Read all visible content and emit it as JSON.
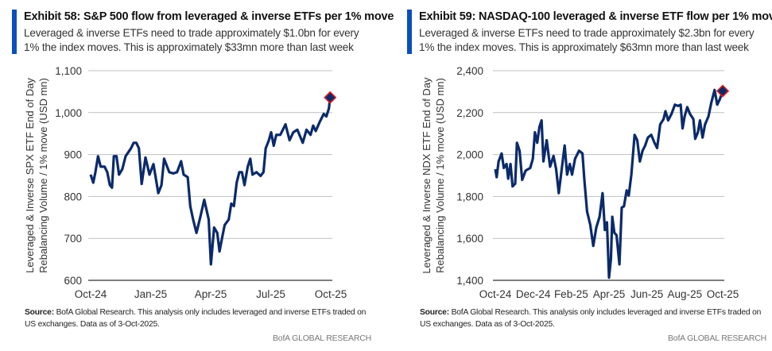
{
  "colors": {
    "accent_bar": "#0a4fbf",
    "line": "#0b2a6b",
    "marker_fill": "#0b2a6b",
    "marker_stroke": "#e02020",
    "grid": "#bfbfbf"
  },
  "panels": [
    {
      "title": "Exhibit 58: S&P 500 flow from leveraged & inverse ETFs per 1% move",
      "subtitle": "Leveraged & inverse ETFs need to trade approximately $1.0bn for every 1% the index moves. This is approximately $33mn more than last week",
      "source_label": "Source:",
      "source_text": " BofA Global Research.  This analysis only includes leveraged and inverse ETFs traded on US exchanges.  Data as of 3-Oct-2025.",
      "brand": "BofA GLOBAL RESEARCH"
    },
    {
      "title": "Exhibit 59: NASDAQ-100 leveraged & inverse ETF flow per 1% move",
      "subtitle": "Leveraged & inverse ETFs need to trade approximately $2.3bn for every 1% the index moves. This is approximately $63mn more than last week",
      "source_label": "Source:",
      "source_text": " BofA Global Research.  This analysis only includes leveraged and inverse ETFs traded on US exchanges.  Data as of 3-Oct-2025.",
      "brand": "BofA GLOBAL RESEARCH"
    }
  ],
  "chart_data": [
    {
      "type": "line",
      "title": "Exhibit 58: S&P 500 flow from leveraged & inverse ETFs per 1% move",
      "xlabel": "",
      "ylabel_lines": [
        "Leveraged & Inverse SPX ETF End of Day",
        "Rebalancing Volume / 1% move (USD mn)"
      ],
      "x_unit": "months since Oct-24",
      "xlim": [
        0,
        12
      ],
      "ylim": [
        600,
        1100
      ],
      "yticks": [
        600,
        700,
        800,
        900,
        1000,
        1100
      ],
      "ytick_labels": [
        "600",
        "700",
        "800",
        "900",
        "1,000",
        "1,100"
      ],
      "xticks": [
        0,
        3,
        6,
        9,
        12
      ],
      "xtick_labels": [
        "Oct-24",
        "Jan-25",
        "Apr-25",
        "Jul-25",
        "Oct-25"
      ],
      "grid": true,
      "last_point_marker": "diamond",
      "x": [
        0,
        0.13,
        0.24,
        0.37,
        0.5,
        0.7,
        0.83,
        0.96,
        1.07,
        1.16,
        1.29,
        1.42,
        1.58,
        1.75,
        2.02,
        2.15,
        2.28,
        2.41,
        2.55,
        2.74,
        2.94,
        3.14,
        3.38,
        3.54,
        3.67,
        3.93,
        4.13,
        4.32,
        4.52,
        4.65,
        4.85,
        4.98,
        5.12,
        5.29,
        5.45,
        5.68,
        5.9,
        6.01,
        6.17,
        6.33,
        6.44,
        6.57,
        6.7,
        6.9,
        7.03,
        7.16,
        7.3,
        7.43,
        7.56,
        7.69,
        7.85,
        7.98,
        8.09,
        8.29,
        8.49,
        8.64,
        8.75,
        8.91,
        9.02,
        9.15,
        9.28,
        9.48,
        9.74,
        9.94,
        10.13,
        10.33,
        10.6,
        10.79,
        10.99,
        11.12,
        11.25,
        11.45,
        11.65,
        11.78,
        11.91,
        11.97
      ],
      "values": [
        852,
        833,
        858,
        896,
        871,
        871,
        858,
        827,
        821,
        896,
        896,
        852,
        865,
        896,
        915,
        928,
        928,
        915,
        830,
        893,
        852,
        877,
        808,
        827,
        890,
        858,
        855,
        858,
        884,
        852,
        846,
        777,
        745,
        713,
        745,
        792,
        745,
        638,
        726,
        713,
        669,
        701,
        732,
        745,
        783,
        777,
        833,
        858,
        858,
        827,
        871,
        890,
        852,
        858,
        849,
        858,
        915,
        934,
        953,
        921,
        947,
        947,
        972,
        934,
        953,
        959,
        928,
        959,
        947,
        969,
        956,
        978,
        997,
        991,
        1010,
        1036
      ]
    },
    {
      "type": "line",
      "title": "Exhibit 59: NASDAQ-100 leveraged & inverse ETF flow per 1% move",
      "xlabel": "",
      "ylabel_lines": [
        "Leveraged & Inverse NDX ETF End of Day",
        "Rebalancing Volume / 1% move (USD mn)"
      ],
      "x_unit": "months since Oct-24",
      "xlim": [
        0,
        12
      ],
      "ylim": [
        1400,
        2400
      ],
      "yticks": [
        1400,
        1600,
        1800,
        2000,
        2200,
        2400
      ],
      "ytick_labels": [
        "1,400",
        "1,600",
        "1,800",
        "2,000",
        "2,200",
        "2,400"
      ],
      "xticks": [
        0,
        2,
        4,
        6,
        8,
        10,
        12
      ],
      "xtick_labels": [
        "Oct-24",
        "Dec-24",
        "Feb-25",
        "Apr-25",
        "Jun-25",
        "Aug-25",
        "Oct-25"
      ],
      "grid": true,
      "last_point_marker": "diamond",
      "x": [
        0,
        0.07,
        0.17,
        0.33,
        0.45,
        0.59,
        0.68,
        0.8,
        0.91,
        1.05,
        1.14,
        1.28,
        1.42,
        1.6,
        1.84,
        1.98,
        2.09,
        2.21,
        2.33,
        2.44,
        2.54,
        2.71,
        2.89,
        3.07,
        3.21,
        3.35,
        3.52,
        3.66,
        3.79,
        3.93,
        4.05,
        4.21,
        4.42,
        4.6,
        4.7,
        4.84,
        5.01,
        5.17,
        5.33,
        5.5,
        5.66,
        5.78,
        5.89,
        6.0,
        6.1,
        6.17,
        6.28,
        6.4,
        6.55,
        6.67,
        6.79,
        6.93,
        7.04,
        7.18,
        7.35,
        7.49,
        7.63,
        7.77,
        7.91,
        8.05,
        8.23,
        8.4,
        8.54,
        8.7,
        8.88,
        8.98,
        9.12,
        9.3,
        9.48,
        9.64,
        9.78,
        9.88,
        9.99,
        10.13,
        10.27,
        10.45,
        10.55,
        10.69,
        10.8,
        10.94,
        11.07,
        11.25,
        11.39,
        11.57,
        11.71,
        11.85,
        12.0
      ],
      "values": [
        1930,
        1892,
        1967,
        2005,
        1936,
        1955,
        1885,
        1955,
        1848,
        1861,
        2056,
        2018,
        1879,
        1923,
        1936,
        1980,
        2106,
        2056,
        2132,
        2163,
        1967,
        2068,
        1942,
        1993,
        1930,
        1816,
        1942,
        2043,
        1904,
        1955,
        1904,
        1980,
        2018,
        2005,
        1879,
        1728,
        1665,
        1564,
        1652,
        1703,
        1816,
        1640,
        1677,
        1413,
        1501,
        1703,
        1627,
        1615,
        1476,
        1747,
        1753,
        1829,
        1804,
        1904,
        2094,
        2068,
        1967,
        2018,
        2043,
        2081,
        2094,
        2056,
        2031,
        2144,
        2169,
        2207,
        2163,
        2194,
        2238,
        2232,
        2238,
        2125,
        2182,
        2226,
        2194,
        2169,
        2075,
        2106,
        2163,
        2081,
        2144,
        2182,
        2245,
        2308,
        2238,
        2264,
        2303
      ]
    }
  ]
}
